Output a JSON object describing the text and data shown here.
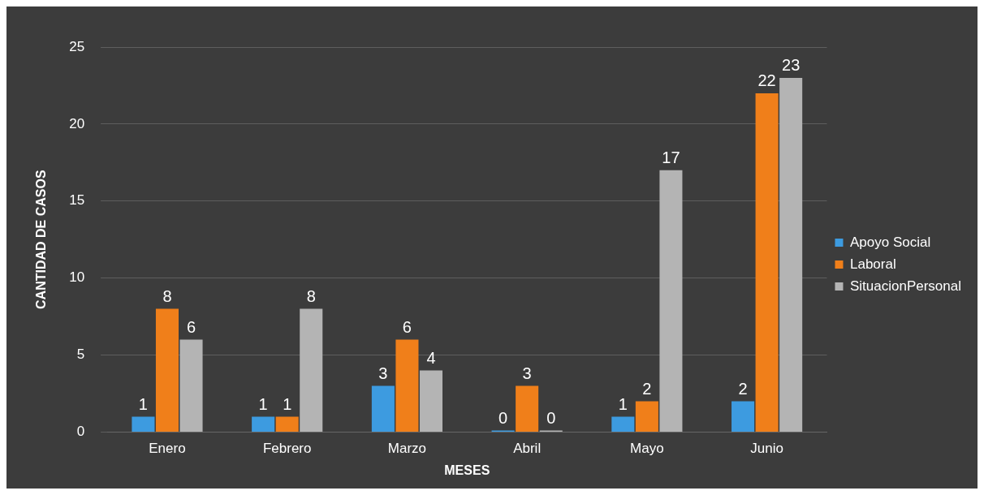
{
  "chart_data": {
    "type": "bar",
    "xlabel": "MESES",
    "ylabel": "CANTIDAD DE CASOS",
    "categories": [
      "Enero",
      "Febrero",
      "Marzo",
      "Abril",
      "Mayo",
      "Junio"
    ],
    "series": [
      {
        "name": "Apoyo Social",
        "color": "#3d9be0",
        "values": [
          1,
          1,
          3,
          0,
          1,
          2
        ]
      },
      {
        "name": "Laboral",
        "color": "#f07f1a",
        "values": [
          8,
          1,
          6,
          3,
          2,
          22
        ]
      },
      {
        "name": "SituacionPersonal",
        "color": "#b4b4b4",
        "values": [
          6,
          8,
          4,
          0,
          17,
          23
        ]
      }
    ],
    "ylim": [
      0,
      25
    ],
    "yticks": [
      0,
      5,
      10,
      15,
      20,
      25
    ],
    "grid": "y",
    "legend": "right",
    "data_labels": true
  }
}
